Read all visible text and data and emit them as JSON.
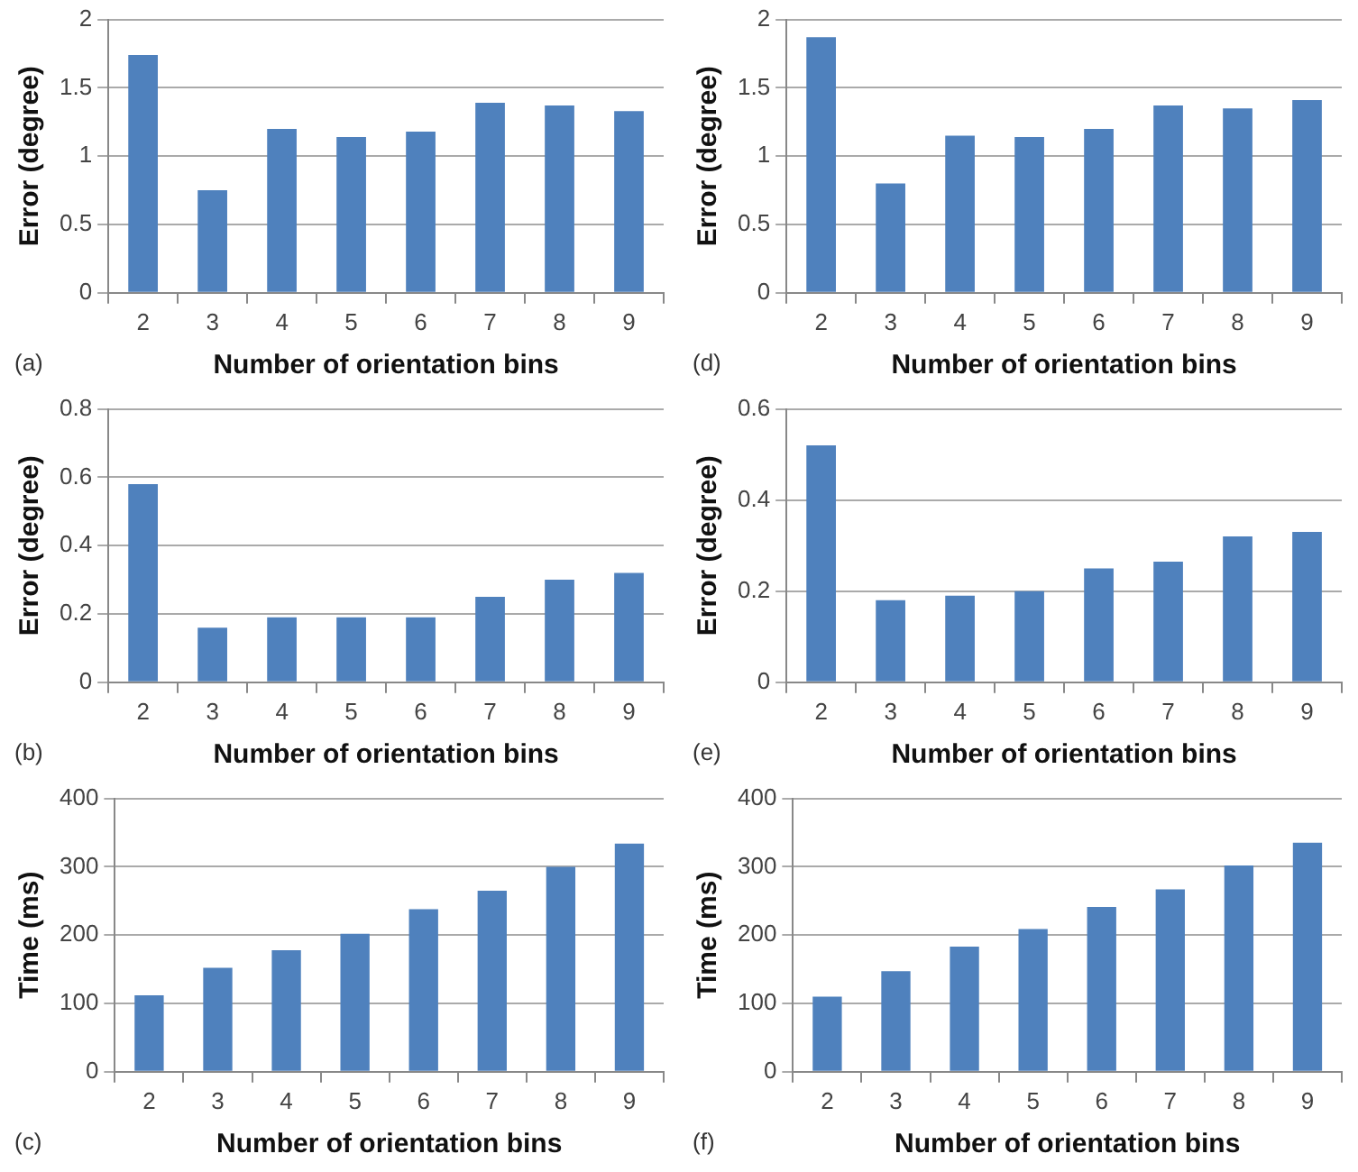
{
  "chart_data": [
    {
      "type": "bar",
      "categories": [
        "2",
        "3",
        "4",
        "5",
        "6",
        "7",
        "8",
        "9"
      ],
      "values": [
        1.74,
        0.75,
        1.2,
        1.14,
        1.18,
        1.39,
        1.37,
        1.33
      ],
      "color": "#4f81bd",
      "xlabel": "Number of orientation bins",
      "ylabel": "Error (degree)",
      "ylim": [
        0,
        2
      ],
      "yticks": [
        0,
        0.5,
        1,
        1.5,
        2
      ],
      "grid": "y",
      "annotations": [
        "(a)"
      ]
    },
    {
      "type": "bar",
      "categories": [
        "2",
        "3",
        "4",
        "5",
        "6",
        "7",
        "8",
        "9"
      ],
      "values": [
        1.87,
        0.8,
        1.15,
        1.14,
        1.2,
        1.37,
        1.35,
        1.41
      ],
      "color": "#4f81bd",
      "xlabel": "Number of orientation bins",
      "ylabel": "Error (degree)",
      "ylim": [
        0,
        2
      ],
      "yticks": [
        0,
        0.5,
        1,
        1.5,
        2
      ],
      "grid": "y",
      "annotations": [
        "(d)"
      ]
    },
    {
      "type": "bar",
      "categories": [
        "2",
        "3",
        "4",
        "5",
        "6",
        "7",
        "8",
        "9"
      ],
      "values": [
        0.58,
        0.16,
        0.19,
        0.19,
        0.19,
        0.25,
        0.3,
        0.32
      ],
      "color": "#4f81bd",
      "xlabel": "Number of orientation bins",
      "ylabel": "Error (degree)",
      "ylim": [
        0,
        0.8
      ],
      "yticks": [
        0,
        0.2,
        0.4,
        0.6,
        0.8
      ],
      "grid": "y",
      "annotations": [
        "(b)"
      ]
    },
    {
      "type": "bar",
      "categories": [
        "2",
        "3",
        "4",
        "5",
        "6",
        "7",
        "8",
        "9"
      ],
      "values": [
        0.52,
        0.18,
        0.19,
        0.2,
        0.25,
        0.265,
        0.32,
        0.33
      ],
      "color": "#4f81bd",
      "xlabel": "Number of orientation bins",
      "ylabel": "Error (degree)",
      "ylim": [
        0,
        0.6
      ],
      "yticks": [
        0,
        0.2,
        0.4,
        0.6
      ],
      "grid": "y",
      "annotations": [
        "(e)"
      ]
    },
    {
      "type": "bar",
      "categories": [
        "2",
        "3",
        "4",
        "5",
        "6",
        "7",
        "8",
        "9"
      ],
      "values": [
        112,
        152,
        178,
        202,
        238,
        265,
        300,
        334
      ],
      "color": "#4f81bd",
      "xlabel": "Number of orientation bins",
      "ylabel": "Time (ms)",
      "ylim": [
        0,
        400
      ],
      "yticks": [
        0,
        100,
        200,
        300,
        400
      ],
      "grid": "y",
      "annotations": [
        "(c)"
      ]
    },
    {
      "type": "bar",
      "categories": [
        "2",
        "3",
        "4",
        "5",
        "6",
        "7",
        "8",
        "9"
      ],
      "values": [
        110,
        147,
        183,
        209,
        241,
        267,
        302,
        335
      ],
      "color": "#4f81bd",
      "xlabel": "Number of orientation bins",
      "ylabel": "Time (ms)",
      "ylim": [
        0,
        400
      ],
      "yticks": [
        0,
        100,
        200,
        300,
        400
      ],
      "grid": "y",
      "annotations": [
        "(f)"
      ]
    }
  ]
}
